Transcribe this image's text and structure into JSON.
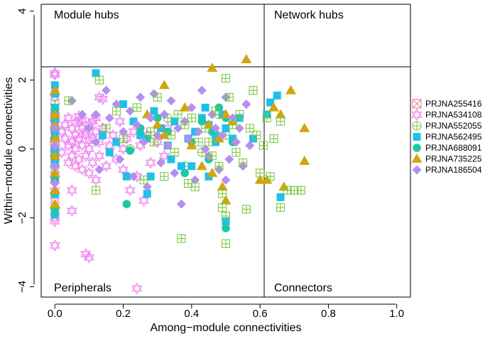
{
  "chart_data": {
    "type": "scatter",
    "xlabel": "Among−module connectivities",
    "ylabel": "Within−module connectivities",
    "xlim": [
      -0.04,
      1.04
    ],
    "ylim": [
      -4.3,
      4.2
    ],
    "x_ticks": [
      0.0,
      0.2,
      0.4,
      0.6,
      0.8,
      1.0
    ],
    "x_tick_labels": [
      "0.0",
      "0.2",
      "0.4",
      "0.6",
      "0.8",
      "1.0"
    ],
    "y_ticks": [
      -4,
      -2,
      0,
      2,
      4
    ],
    "y_tick_labels": [
      "−4",
      "−2",
      "0",
      "2",
      "4"
    ],
    "thresholds": {
      "zi": 2.5,
      "pi": 0.62
    },
    "regions": {
      "top_left": "Module hubs",
      "top_right": "Network hubs",
      "bottom_left": "Peripherals",
      "bottom_right": "Connectors"
    },
    "legend_position": "right",
    "series": [
      {
        "name": "PRJNA255416",
        "marker": "square-x",
        "color": "#f08080",
        "points": [
          [
            0.0,
            0.9
          ],
          [
            0.0,
            -0.1
          ],
          [
            0.0,
            0.2
          ]
        ]
      },
      {
        "name": "PRJNA534108",
        "marker": "star",
        "color": "#ee82ee",
        "points": [
          [
            0.0,
            2.2
          ],
          [
            0.0,
            2.15
          ],
          [
            0.0,
            1.5
          ],
          [
            0.0,
            1.1
          ],
          [
            0.0,
            0.9
          ],
          [
            0.0,
            0.6
          ],
          [
            0.0,
            0.4
          ],
          [
            0.0,
            0.2
          ],
          [
            0.0,
            0.0
          ],
          [
            0.0,
            -0.3
          ],
          [
            0.0,
            -0.6
          ],
          [
            0.0,
            -0.9
          ],
          [
            0.0,
            -1.2
          ],
          [
            0.0,
            -1.5
          ],
          [
            0.0,
            -1.8
          ],
          [
            0.0,
            -2.0
          ],
          [
            0.0,
            -2.1
          ],
          [
            0.0,
            -2.8
          ],
          [
            0.02,
            0.5
          ],
          [
            0.02,
            -0.1
          ],
          [
            0.03,
            0.3
          ],
          [
            0.03,
            0.7
          ],
          [
            0.04,
            0.1
          ],
          [
            0.04,
            -0.4
          ],
          [
            0.05,
            0.6
          ],
          [
            0.05,
            0.2
          ],
          [
            0.05,
            -0.2
          ],
          [
            0.06,
            0.4
          ],
          [
            0.06,
            0.0
          ],
          [
            0.06,
            -0.5
          ],
          [
            0.07,
            0.8
          ],
          [
            0.07,
            0.3
          ],
          [
            0.07,
            -0.3
          ],
          [
            0.08,
            0.6
          ],
          [
            0.08,
            0.1
          ],
          [
            0.08,
            -0.6
          ],
          [
            0.09,
            0.4
          ],
          [
            0.09,
            -0.2
          ],
          [
            0.1,
            0.7
          ],
          [
            0.1,
            0.0
          ],
          [
            0.1,
            -0.7
          ],
          [
            0.11,
            0.3
          ],
          [
            0.11,
            -0.4
          ],
          [
            0.12,
            0.5
          ],
          [
            0.12,
            -0.9
          ],
          [
            0.13,
            0.2
          ],
          [
            0.13,
            -0.2
          ],
          [
            0.14,
            0.6
          ],
          [
            0.15,
            -0.5
          ],
          [
            0.16,
            0.1
          ],
          [
            0.17,
            0.4
          ],
          [
            0.18,
            -0.3
          ],
          [
            0.19,
            0.8
          ],
          [
            0.2,
            0.0
          ],
          [
            0.2,
            -0.6
          ],
          [
            0.21,
            0.3
          ],
          [
            0.22,
            -1.2
          ],
          [
            0.23,
            0.5
          ],
          [
            0.24,
            -0.8
          ],
          [
            0.25,
            0.1
          ],
          [
            0.26,
            -1.5
          ],
          [
            0.27,
            0.4
          ],
          [
            0.28,
            -0.4
          ],
          [
            0.3,
            0.2
          ],
          [
            0.32,
            -0.2
          ],
          [
            0.33,
            0.6
          ],
          [
            0.05,
            -1.8
          ],
          [
            0.05,
            -1.2
          ],
          [
            0.04,
            0.9
          ],
          [
            0.09,
            -3.05
          ],
          [
            0.1,
            -3.15
          ],
          [
            0.1,
            0.25
          ],
          [
            0.09,
            0.5
          ],
          [
            0.11,
            0.8
          ],
          [
            0.24,
            -4.05
          ],
          [
            0.13,
            1.5
          ],
          [
            0.14,
            1.45
          ],
          [
            0.07,
            0.95
          ],
          [
            0.08,
            0.85
          ],
          [
            0.06,
            0.75
          ],
          [
            0.12,
            0.9
          ]
        ]
      },
      {
        "name": "PRJNA552055",
        "marker": "circle-plus",
        "color": "#7ac943",
        "points": [
          [
            0.0,
            1.3
          ],
          [
            0.0,
            0.6
          ],
          [
            0.0,
            -0.5
          ],
          [
            0.0,
            -1.3
          ],
          [
            0.0,
            -1.7
          ],
          [
            0.22,
            0.0
          ],
          [
            0.26,
            0.3
          ],
          [
            0.33,
            0.9
          ],
          [
            0.43,
            -0.1
          ],
          [
            0.48,
            1.0
          ],
          [
            0.5,
            0.4
          ],
          [
            0.38,
            -0.5
          ]
        ]
      },
      {
        "name": "PRJNA562495",
        "marker": "square",
        "color": "#1fc0e8",
        "points": [
          [
            0.0,
            1.85
          ],
          [
            0.0,
            1.6
          ],
          [
            0.0,
            1.2
          ],
          [
            0.0,
            0.8
          ],
          [
            0.0,
            0.5
          ],
          [
            0.0,
            0.0
          ],
          [
            0.0,
            -0.4
          ],
          [
            0.0,
            -0.8
          ],
          [
            0.0,
            -1.3
          ],
          [
            0.0,
            -1.9
          ],
          [
            0.12,
            2.2
          ],
          [
            0.14,
            0.4
          ],
          [
            0.16,
            -0.1
          ],
          [
            0.18,
            0.2
          ],
          [
            0.2,
            1.3
          ],
          [
            0.21,
            -0.8
          ],
          [
            0.23,
            0.8
          ],
          [
            0.25,
            0.4
          ],
          [
            0.27,
            -1.3
          ],
          [
            0.29,
            1.1
          ],
          [
            0.31,
            0.6
          ],
          [
            0.33,
            0.1
          ],
          [
            0.35,
            0.8
          ],
          [
            0.37,
            -0.5
          ],
          [
            0.39,
            0.3
          ],
          [
            0.41,
            0.5
          ],
          [
            0.43,
            0.9
          ],
          [
            0.45,
            0.7
          ],
          [
            0.47,
            0.2
          ],
          [
            0.49,
            1.0
          ],
          [
            0.5,
            0.6
          ],
          [
            0.52,
            0.3
          ],
          [
            0.54,
            0.9
          ],
          [
            0.58,
            0.3
          ],
          [
            0.62,
            1.0
          ],
          [
            0.63,
            1.35
          ],
          [
            0.65,
            1.55
          ],
          [
            0.66,
            -1.4
          ],
          [
            0.5,
            -2.1
          ],
          [
            0.45,
            -0.8
          ],
          [
            0.4,
            -0.5
          ],
          [
            0.34,
            -0.3
          ],
          [
            0.28,
            -0.8
          ],
          [
            0.44,
            1.2
          ],
          [
            0.47,
            0.4
          ]
        ]
      },
      {
        "name": "PRJNA688091",
        "marker": "circle",
        "color": "#1ec7a8",
        "points": [
          [
            0.0,
            1.1
          ],
          [
            0.0,
            0.3
          ],
          [
            0.0,
            -0.2
          ],
          [
            0.0,
            -0.9
          ],
          [
            0.0,
            -1.8
          ],
          [
            0.21,
            -1.6
          ],
          [
            0.22,
            -0.05
          ],
          [
            0.25,
            0.6
          ],
          [
            0.27,
            0.3
          ],
          [
            0.3,
            0.9
          ],
          [
            0.33,
            0.5
          ],
          [
            0.38,
            -0.7
          ],
          [
            0.4,
            0.2
          ],
          [
            0.43,
            0.8
          ],
          [
            0.46,
            0.5
          ],
          [
            0.48,
            1.2
          ],
          [
            0.5,
            -2.3
          ],
          [
            0.5,
            0.9
          ],
          [
            0.52,
            0.2
          ],
          [
            0.45,
            -0.3
          ]
        ]
      },
      {
        "name": "PRJNA735225",
        "marker": "triangle",
        "color": "#d4a40c",
        "points": [
          [
            0.0,
            1.7
          ],
          [
            0.0,
            1.0
          ],
          [
            0.0,
            0.7
          ],
          [
            0.0,
            0.3
          ],
          [
            0.0,
            -0.2
          ],
          [
            0.0,
            -0.7
          ],
          [
            0.0,
            -1.2
          ],
          [
            0.0,
            -1.6
          ],
          [
            0.27,
            1.0
          ],
          [
            0.3,
            0.7
          ],
          [
            0.32,
            1.85
          ],
          [
            0.32,
            0.4
          ],
          [
            0.38,
            1.2
          ],
          [
            0.4,
            0.1
          ],
          [
            0.43,
            -0.5
          ],
          [
            0.45,
            0.7
          ],
          [
            0.46,
            2.35
          ],
          [
            0.46,
            -0.7
          ],
          [
            0.48,
            0.3
          ],
          [
            0.49,
            -1.1
          ],
          [
            0.5,
            1.0
          ],
          [
            0.5,
            -1.5
          ],
          [
            0.52,
            0.8
          ],
          [
            0.56,
            2.6
          ],
          [
            0.6,
            -0.9
          ],
          [
            0.62,
            -0.9
          ],
          [
            0.64,
            1.2
          ],
          [
            0.66,
            1.0
          ],
          [
            0.67,
            -1.1
          ],
          [
            0.69,
            1.7
          ],
          [
            0.73,
            0.6
          ],
          [
            0.73,
            -0.35
          ]
        ]
      },
      {
        "name": "PRJNA186504",
        "marker": "diamond",
        "color": "#b48ff0",
        "points": [
          [
            0.05,
            1.4
          ],
          [
            0.08,
            1.0
          ],
          [
            0.1,
            0.6
          ],
          [
            0.12,
            0.2
          ],
          [
            0.13,
            -0.6
          ],
          [
            0.15,
            1.7
          ],
          [
            0.16,
            0.9
          ],
          [
            0.18,
            1.3
          ],
          [
            0.19,
            -0.3
          ],
          [
            0.2,
            0.5
          ],
          [
            0.22,
            1.1
          ],
          [
            0.23,
            -0.8
          ],
          [
            0.24,
            0.7
          ],
          [
            0.25,
            1.5
          ],
          [
            0.26,
            0.2
          ],
          [
            0.27,
            -1.1
          ],
          [
            0.28,
            0.9
          ],
          [
            0.29,
            1.6
          ],
          [
            0.3,
            0.4
          ],
          [
            0.31,
            -0.4
          ],
          [
            0.32,
            1.0
          ],
          [
            0.33,
            0.1
          ],
          [
            0.34,
            1.4
          ],
          [
            0.35,
            -0.7
          ],
          [
            0.36,
            0.6
          ],
          [
            0.37,
            -1.6
          ],
          [
            0.38,
            0.8
          ],
          [
            0.39,
            0.3
          ],
          [
            0.4,
            1.2
          ],
          [
            0.41,
            -0.9
          ],
          [
            0.42,
            0.5
          ],
          [
            0.43,
            1.7
          ],
          [
            0.44,
            0.0
          ],
          [
            0.45,
            -0.2
          ],
          [
            0.46,
            1.0
          ],
          [
            0.47,
            0.6
          ],
          [
            0.48,
            -0.6
          ],
          [
            0.49,
            0.4
          ],
          [
            0.5,
            1.5
          ],
          [
            0.51,
            -0.3
          ],
          [
            0.52,
            0.9
          ],
          [
            0.53,
            0.2
          ],
          [
            0.54,
            0.6
          ],
          [
            0.55,
            -0.5
          ],
          [
            0.56,
            1.3
          ],
          [
            0.57,
            0.1
          ],
          [
            0.0,
            0.1
          ],
          [
            0.0,
            -0.5
          ],
          [
            0.0,
            -1.0
          ],
          [
            0.0,
            0.6
          ],
          [
            0.12,
            1.0
          ],
          [
            0.5,
            -0.9
          ]
        ]
      }
    ]
  }
}
